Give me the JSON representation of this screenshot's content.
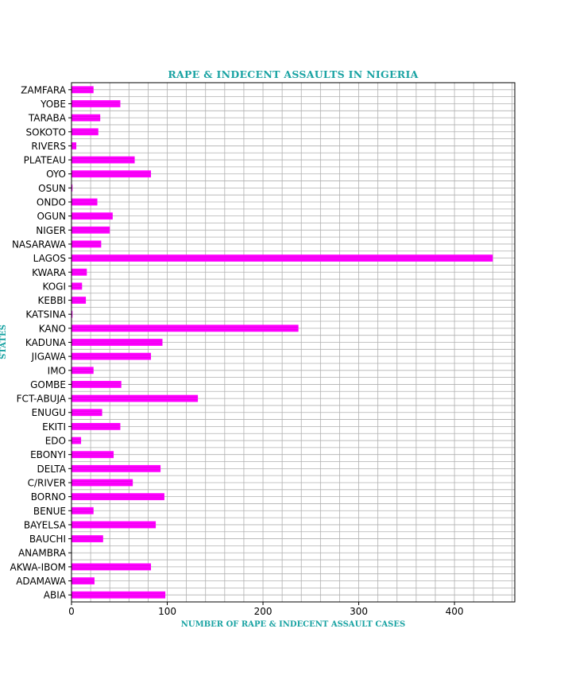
{
  "chart_data": {
    "type": "bar",
    "orientation": "horizontal",
    "title": "RAPE & INDECENT ASSAULTS IN NIGERIA",
    "xlabel": "NUMBER OF RAPE & INDECENT ASSAULT CASES",
    "ylabel": "STATES",
    "categories": [
      "ABIA",
      "ADAMAWA",
      "AKWA-IBOM",
      "ANAMBRA",
      "BAUCHI",
      "BAYELSA",
      "BENUE",
      "BORNO",
      "C/RIVER",
      "DELTA",
      "EBONYI",
      "EDO",
      "EKITI",
      "ENUGU",
      "FCT-ABUJA",
      "GOMBE",
      "IMO",
      "JIGAWA",
      "KADUNA",
      "KANO",
      "KATSINA",
      "KEBBI",
      "KOGI",
      "KWARA",
      "LAGOS",
      "NASARAWA",
      "NIGER",
      "OGUN",
      "ONDO",
      "OSUN",
      "OYO",
      "PLATEAU",
      "RIVERS",
      "SOKOTO",
      "TARABA",
      "YOBE",
      "ZAMFARA"
    ],
    "values": [
      98,
      24,
      83,
      0,
      33,
      88,
      23,
      97,
      64,
      93,
      44,
      10,
      51,
      32,
      132,
      52,
      23,
      83,
      95,
      237,
      1,
      15,
      11,
      16,
      440,
      31,
      40,
      43,
      27,
      1,
      83,
      66,
      5,
      28,
      30,
      51,
      23
    ],
    "xlim": [
      0,
      463
    ],
    "xticks": [
      0,
      100,
      200,
      300,
      400
    ],
    "xtick_labels": [
      "0",
      "100",
      "200",
      "300",
      "400"
    ],
    "grid": true,
    "bar_color": "#ff00ff",
    "bar_line_color": "#e000e0",
    "title_color": "#1aa3a3",
    "grid_color": "#b0b0b0"
  }
}
